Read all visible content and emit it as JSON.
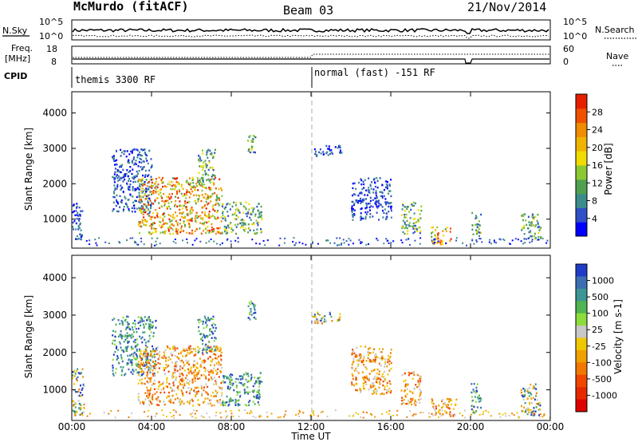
{
  "header": {
    "title": "McMurdo (fitACF)",
    "beam": "Beam 03",
    "date": "21/Nov/2014"
  },
  "status_panel": {
    "nsky_label": "N.Sky",
    "nsearch_label": "N.Search",
    "nsky_ticks": [
      "10^5",
      "10^0"
    ],
    "nsearch_ticks": [
      "10^5",
      "10^0"
    ],
    "freq_label_top": "Freq.",
    "freq_label_bottom": "[MHz]",
    "freq_ticks": [
      "18",
      "8"
    ],
    "nave_label": "Nave",
    "nave_ticks": [
      "60",
      "0"
    ],
    "cpid_label": "CPID",
    "cpid_segments": [
      "themis 3300 RF",
      "normal (fast) -151 RF"
    ]
  },
  "chart_data": [
    {
      "type": "heatmap",
      "title": "",
      "xlabel": "",
      "ylabel": "Slant Range [km]",
      "x_ticks": [
        "00:00",
        "04:00",
        "08:00",
        "12:00",
        "16:00",
        "20:00",
        "00:00"
      ],
      "y_ticks": [
        1000,
        2000,
        3000,
        4000
      ],
      "ylim": [
        180,
        4600
      ],
      "colorbar": {
        "label": "Power [dB]",
        "ticks": [
          4,
          8,
          12,
          16,
          20,
          24,
          28
        ],
        "colors": [
          "#0000ff",
          "#3050c8",
          "#3c8c8c",
          "#50a050",
          "#8cc832",
          "#f0dc00",
          "#f0b400",
          "#f08c00",
          "#f05000",
          "#e61e00"
        ]
      },
      "echo_regions": [
        {
          "t_start": 0.0,
          "t_end": 0.5,
          "range_start": 300,
          "range_end": 1500,
          "level": "low"
        },
        {
          "t_start": 2.0,
          "t_end": 4.0,
          "range_start": 1200,
          "range_end": 3000,
          "level": "low"
        },
        {
          "t_start": 3.3,
          "t_end": 7.5,
          "range_start": 600,
          "range_end": 2200,
          "level": "high"
        },
        {
          "t_start": 6.3,
          "t_end": 7.2,
          "range_start": 2000,
          "range_end": 3000,
          "level": "mid"
        },
        {
          "t_start": 7.5,
          "t_end": 9.5,
          "range_start": 600,
          "range_end": 1500,
          "level": "mid"
        },
        {
          "t_start": 8.8,
          "t_end": 9.2,
          "range_start": 2900,
          "range_end": 3400,
          "level": "mid"
        },
        {
          "t_start": 12.0,
          "t_end": 13.5,
          "range_start": 2800,
          "range_end": 3100,
          "level": "low"
        },
        {
          "t_start": 14.0,
          "t_end": 16.0,
          "range_start": 1000,
          "range_end": 2200,
          "level": "low"
        },
        {
          "t_start": 16.5,
          "t_end": 17.5,
          "range_start": 600,
          "range_end": 1500,
          "level": "mid"
        },
        {
          "t_start": 18.0,
          "t_end": 19.0,
          "range_start": 300,
          "range_end": 800,
          "level": "high"
        },
        {
          "t_start": 20.0,
          "t_end": 20.5,
          "range_start": 500,
          "range_end": 1200,
          "level": "mid"
        },
        {
          "t_start": 22.5,
          "t_end": 23.5,
          "range_start": 400,
          "range_end": 1200,
          "level": "mid"
        }
      ]
    },
    {
      "type": "heatmap",
      "title": "",
      "xlabel": "Time UT",
      "ylabel": "Slant Range [km]",
      "x_ticks": [
        "00:00",
        "04:00",
        "08:00",
        "12:00",
        "16:00",
        "20:00",
        "00:00"
      ],
      "y_ticks": [
        1000,
        2000,
        3000,
        4000
      ],
      "ylim": [
        180,
        4600
      ],
      "colorbar": {
        "label": "Velocity [m s-1]",
        "ticks": [
          1000,
          500,
          100,
          25,
          -25,
          -100,
          -500,
          -1000
        ],
        "colors": [
          "#1e3cc8",
          "#3c6eb4",
          "#3c9696",
          "#50b450",
          "#8cdc3c",
          "#c8c8c8",
          "#f0c800",
          "#f0a000",
          "#f07800",
          "#f04600",
          "#e62800",
          "#dc0000"
        ]
      },
      "echo_regions": [
        {
          "t_start": 0.0,
          "t_end": 0.6,
          "range_start": 300,
          "range_end": 1600,
          "level": "mixed"
        },
        {
          "t_start": 2.0,
          "t_end": 4.2,
          "range_start": 1400,
          "range_end": 3000,
          "level": "toward"
        },
        {
          "t_start": 3.3,
          "t_end": 7.5,
          "range_start": 600,
          "range_end": 2200,
          "level": "away"
        },
        {
          "t_start": 6.3,
          "t_end": 7.2,
          "range_start": 2000,
          "range_end": 3000,
          "level": "toward"
        },
        {
          "t_start": 7.5,
          "t_end": 9.5,
          "range_start": 600,
          "range_end": 1500,
          "level": "toward"
        },
        {
          "t_start": 8.8,
          "t_end": 9.2,
          "range_start": 2900,
          "range_end": 3400,
          "level": "toward"
        },
        {
          "t_start": 12.0,
          "t_end": 13.5,
          "range_start": 2800,
          "range_end": 3100,
          "level": "mixed"
        },
        {
          "t_start": 14.0,
          "t_end": 16.0,
          "range_start": 900,
          "range_end": 2200,
          "level": "away"
        },
        {
          "t_start": 16.5,
          "t_end": 17.5,
          "range_start": 600,
          "range_end": 1500,
          "level": "away"
        },
        {
          "t_start": 18.0,
          "t_end": 19.3,
          "range_start": 300,
          "range_end": 800,
          "level": "away"
        },
        {
          "t_start": 20.0,
          "t_end": 20.5,
          "range_start": 400,
          "range_end": 1200,
          "level": "toward"
        },
        {
          "t_start": 22.5,
          "t_end": 23.5,
          "range_start": 300,
          "range_end": 1200,
          "level": "mixed"
        }
      ]
    }
  ]
}
